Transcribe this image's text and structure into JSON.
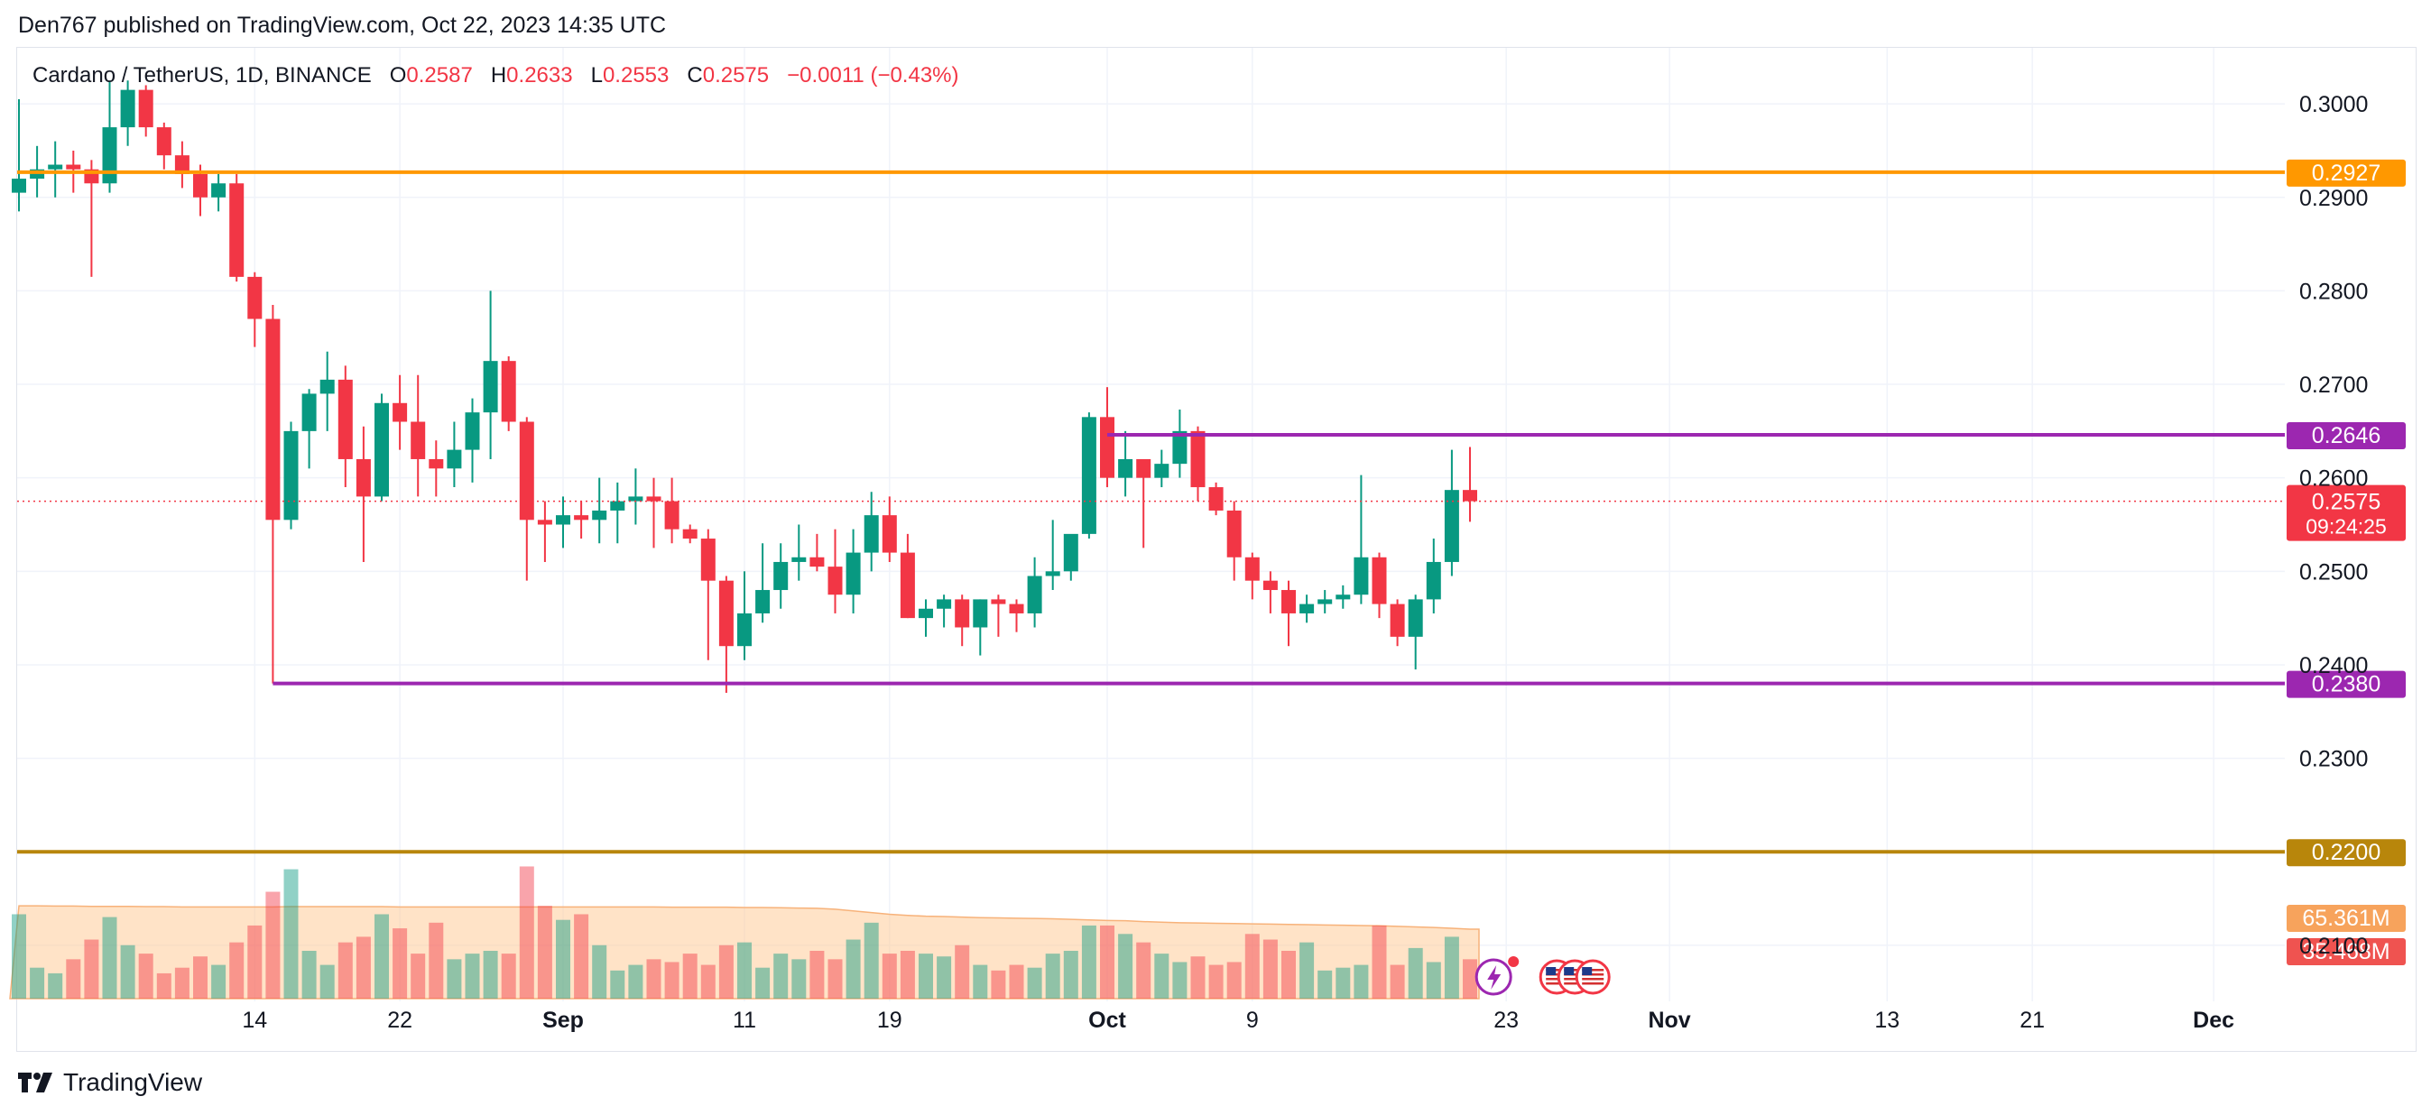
{
  "publisher_line": "Den767 published on TradingView.com, Oct 22, 2023 14:35 UTC",
  "brand": "TradingView",
  "legend": {
    "title": "Cardano / TetherUS, 1D, BINANCE",
    "o_label": "O",
    "o_value": "0.2587",
    "h_label": "H",
    "h_value": "0.2633",
    "l_label": "L",
    "l_value": "0.2553",
    "c_label": "C",
    "c_value": "0.2575",
    "change": "−0.0011 (−0.43%)"
  },
  "colors": {
    "up": "#089981",
    "down": "#f23645",
    "orange": "#ff9800",
    "purple": "#9c27b0",
    "olive": "#b8860b",
    "grid": "#f0f3fa",
    "text": "#131722"
  },
  "chart_data": {
    "type": "candlestick",
    "symbol": "Cardano / TetherUS",
    "interval": "1D",
    "exchange": "BINANCE",
    "ylim": [
      0.204,
      0.306
    ],
    "y_ticks": [
      "0.3000",
      "0.2900",
      "0.2800",
      "0.2700",
      "0.2600",
      "0.2500",
      "0.2400",
      "0.2300",
      "0.2100"
    ],
    "x_ticks": [
      {
        "label": "14",
        "day": 14
      },
      {
        "label": "22",
        "day": 22
      },
      {
        "label": "Sep",
        "day": 31
      },
      {
        "label": "11",
        "day": 41
      },
      {
        "label": "19",
        "day": 49
      },
      {
        "label": "Oct",
        "day": 61
      },
      {
        "label": "9",
        "day": 69
      },
      {
        "label": "23",
        "day": 83
      },
      {
        "label": "Nov",
        "day": 92
      },
      {
        "label": "13",
        "day": 104
      },
      {
        "label": "21",
        "day": 112
      },
      {
        "label": "Dec",
        "day": 122
      }
    ],
    "candles_first_day": 1,
    "candles": [
      [
        0.2905,
        0.3005,
        0.2885,
        0.292
      ],
      [
        0.292,
        0.2955,
        0.29,
        0.293
      ],
      [
        0.293,
        0.296,
        0.29,
        0.2935
      ],
      [
        0.2935,
        0.295,
        0.2905,
        0.293
      ],
      [
        0.293,
        0.294,
        0.2815,
        0.2915
      ],
      [
        0.2915,
        0.3025,
        0.2905,
        0.2975
      ],
      [
        0.2975,
        0.3025,
        0.2955,
        0.3015
      ],
      [
        0.3015,
        0.302,
        0.2965,
        0.2975
      ],
      [
        0.2975,
        0.298,
        0.293,
        0.2945
      ],
      [
        0.2945,
        0.296,
        0.291,
        0.2925
      ],
      [
        0.2925,
        0.2935,
        0.288,
        0.29
      ],
      [
        0.29,
        0.2925,
        0.2885,
        0.2915
      ],
      [
        0.2915,
        0.2925,
        0.281,
        0.2815
      ],
      [
        0.2815,
        0.282,
        0.274,
        0.277
      ],
      [
        0.277,
        0.2785,
        0.238,
        0.2555
      ],
      [
        0.2555,
        0.266,
        0.2545,
        0.265
      ],
      [
        0.265,
        0.2695,
        0.261,
        0.269
      ],
      [
        0.269,
        0.2735,
        0.265,
        0.2705
      ],
      [
        0.2705,
        0.272,
        0.259,
        0.262
      ],
      [
        0.262,
        0.2655,
        0.251,
        0.258
      ],
      [
        0.258,
        0.269,
        0.2575,
        0.268
      ],
      [
        0.268,
        0.271,
        0.263,
        0.266
      ],
      [
        0.266,
        0.271,
        0.258,
        0.262
      ],
      [
        0.262,
        0.264,
        0.258,
        0.261
      ],
      [
        0.261,
        0.266,
        0.259,
        0.263
      ],
      [
        0.263,
        0.2685,
        0.2595,
        0.267
      ],
      [
        0.267,
        0.28,
        0.262,
        0.2725
      ],
      [
        0.2725,
        0.273,
        0.265,
        0.266
      ],
      [
        0.266,
        0.2665,
        0.249,
        0.2555
      ],
      [
        0.2555,
        0.2575,
        0.251,
        0.255
      ],
      [
        0.255,
        0.258,
        0.2525,
        0.256
      ],
      [
        0.256,
        0.2575,
        0.2535,
        0.2555
      ],
      [
        0.2555,
        0.26,
        0.253,
        0.2565
      ],
      [
        0.2565,
        0.2595,
        0.253,
        0.2575
      ],
      [
        0.2575,
        0.261,
        0.255,
        0.258
      ],
      [
        0.258,
        0.26,
        0.2525,
        0.2575
      ],
      [
        0.2575,
        0.26,
        0.253,
        0.2545
      ],
      [
        0.2545,
        0.255,
        0.253,
        0.2535
      ],
      [
        0.2535,
        0.2545,
        0.2405,
        0.249
      ],
      [
        0.249,
        0.2495,
        0.237,
        0.242
      ],
      [
        0.242,
        0.25,
        0.2405,
        0.2455
      ],
      [
        0.2455,
        0.253,
        0.2445,
        0.248
      ],
      [
        0.248,
        0.253,
        0.246,
        0.251
      ],
      [
        0.251,
        0.255,
        0.249,
        0.2515
      ],
      [
        0.2515,
        0.254,
        0.25,
        0.2505
      ],
      [
        0.2505,
        0.2545,
        0.2455,
        0.2475
      ],
      [
        0.2475,
        0.2545,
        0.2455,
        0.252
      ],
      [
        0.252,
        0.2585,
        0.25,
        0.256
      ],
      [
        0.256,
        0.258,
        0.251,
        0.252
      ],
      [
        0.252,
        0.254,
        0.245,
        0.245
      ],
      [
        0.245,
        0.247,
        0.243,
        0.246
      ],
      [
        0.246,
        0.2475,
        0.244,
        0.247
      ],
      [
        0.247,
        0.2475,
        0.242,
        0.244
      ],
      [
        0.244,
        0.247,
        0.241,
        0.247
      ],
      [
        0.247,
        0.2475,
        0.243,
        0.2465
      ],
      [
        0.2465,
        0.247,
        0.2435,
        0.2455
      ],
      [
        0.2455,
        0.2515,
        0.244,
        0.2495
      ],
      [
        0.2495,
        0.2555,
        0.248,
        0.25
      ],
      [
        0.25,
        0.253,
        0.249,
        0.254
      ],
      [
        0.254,
        0.267,
        0.2535,
        0.2665
      ],
      [
        0.2665,
        0.2697,
        0.259,
        0.26
      ],
      [
        0.26,
        0.265,
        0.258,
        0.262
      ],
      [
        0.262,
        0.2615,
        0.2525,
        0.26
      ],
      [
        0.26,
        0.263,
        0.259,
        0.2615
      ],
      [
        0.2615,
        0.2673,
        0.26,
        0.265
      ],
      [
        0.265,
        0.2655,
        0.2575,
        0.259
      ],
      [
        0.259,
        0.2595,
        0.256,
        0.2565
      ],
      [
        0.2565,
        0.2575,
        0.249,
        0.2515
      ],
      [
        0.2515,
        0.252,
        0.247,
        0.249
      ],
      [
        0.249,
        0.25,
        0.2455,
        0.248
      ],
      [
        0.248,
        0.249,
        0.242,
        0.2455
      ],
      [
        0.2455,
        0.2475,
        0.2445,
        0.2465
      ],
      [
        0.2465,
        0.248,
        0.2455,
        0.247
      ],
      [
        0.247,
        0.2485,
        0.246,
        0.2475
      ],
      [
        0.2475,
        0.2603,
        0.2465,
        0.2515
      ],
      [
        0.2515,
        0.252,
        0.245,
        0.2465
      ],
      [
        0.2465,
        0.247,
        0.242,
        0.243
      ],
      [
        0.243,
        0.2475,
        0.2395,
        0.247
      ],
      [
        0.247,
        0.2535,
        0.2455,
        0.251
      ],
      [
        0.251,
        0.263,
        0.2495,
        0.2587
      ],
      [
        0.2587,
        0.2633,
        0.2553,
        0.2575
      ]
    ],
    "volume_scale_max": 85,
    "volume_ma": [
      33.0,
      33.0,
      32.9,
      32.9,
      32.8,
      32.8,
      32.8,
      32.7,
      32.7,
      32.6,
      32.6,
      32.6,
      32.6,
      32.6,
      32.6,
      32.7,
      32.7,
      32.7,
      32.7,
      32.7,
      32.7,
      32.6,
      32.6,
      32.6,
      32.6,
      32.6,
      32.6,
      32.6,
      32.6,
      32.6,
      32.6,
      32.6,
      32.6,
      32.6,
      32.6,
      32.6,
      32.5,
      32.5,
      32.5,
      32.5,
      32.4,
      32.4,
      32.3,
      32.2,
      32.1,
      31.8,
      31.2,
      30.6,
      30.0,
      29.6,
      29.3,
      29.2,
      29.0,
      28.8,
      28.7,
      28.6,
      28.5,
      28.4,
      28.2,
      28.0,
      27.8,
      27.7,
      27.4,
      27.2,
      27.0,
      26.9,
      26.8,
      26.7,
      26.6,
      26.5,
      26.4,
      26.3,
      26.2,
      26.1,
      26.0,
      25.9,
      25.7,
      25.5,
      25.3,
      25.0,
      24.7
    ],
    "volume": [
      30,
      11,
      9,
      14,
      21,
      29,
      19,
      16,
      9,
      11,
      15,
      12,
      20,
      26,
      38,
      46,
      17,
      12,
      20,
      22,
      30,
      25,
      16,
      27,
      14,
      16,
      17,
      16,
      47,
      33,
      28,
      30,
      19,
      10,
      12,
      14,
      13,
      16,
      12,
      19,
      20,
      11,
      16,
      14,
      17,
      14,
      21,
      27,
      16,
      17,
      16,
      15,
      19,
      12,
      10,
      12,
      11,
      16,
      17,
      26,
      26,
      23,
      20,
      16,
      13,
      15,
      12,
      13,
      23,
      21,
      17,
      20,
      10,
      11,
      12,
      26,
      12,
      18,
      13,
      22,
      14
    ],
    "horizontal_levels": [
      {
        "value": 0.2927,
        "label": "0.2927",
        "color": "#ff9800"
      },
      {
        "value": 0.2646,
        "label": "0.2646",
        "color": "#9c27b0"
      },
      {
        "value": 0.238,
        "label": "0.2380",
        "color": "#9c27b0"
      },
      {
        "value": 0.22,
        "label": "0.2200",
        "color": "#b8860b"
      }
    ],
    "last_price": {
      "value": 0.2575,
      "label": "0.2575",
      "countdown": "09:24:25"
    },
    "volume_badges": [
      {
        "label": "65.361M",
        "color": "#f7a35c"
      },
      {
        "label": "35.468M",
        "color": "#ef5350"
      }
    ]
  }
}
